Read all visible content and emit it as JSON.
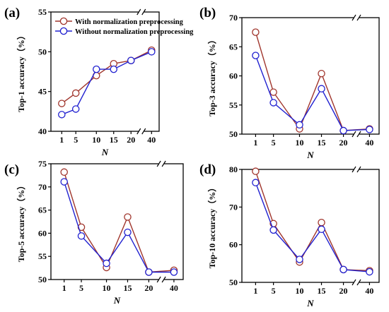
{
  "figure": {
    "legend_placement": "top-left of panel (a)",
    "colors": {
      "with": "#A0352C",
      "without": "#2020D0",
      "axis": "#000000"
    }
  },
  "chart_data": [
    {
      "type": "line",
      "panel_label": "(a)",
      "xlabel": "N",
      "ylabel": "Top-1 accuracy（%）",
      "x": [
        1,
        5,
        10,
        15,
        20,
        40
      ],
      "x_ticks": [
        "1",
        "5",
        "10",
        "15",
        "20",
        "40"
      ],
      "x_axis_break": "between 20 and 40",
      "ylim": [
        40,
        55
      ],
      "y_ticks": [
        "40",
        "45",
        "50",
        "55"
      ],
      "grid": false,
      "legend": [
        "With normalization preprocessing",
        "Without normalization preprocessing"
      ],
      "series": [
        {
          "name": "With normalization preprocessing",
          "values": [
            43.5,
            44.8,
            47.0,
            48.5,
            48.9,
            50.2
          ]
        },
        {
          "name": "Without normalization preprocessing",
          "values": [
            42.1,
            42.8,
            47.8,
            47.8,
            48.9,
            50.0
          ]
        }
      ]
    },
    {
      "type": "line",
      "panel_label": "(b)",
      "xlabel": "N",
      "ylabel": "Top-3 accuracy（%）",
      "x": [
        1,
        5,
        10,
        15,
        20,
        40
      ],
      "x_ticks": [
        "1",
        "5",
        "10",
        "15",
        "20",
        "40"
      ],
      "x_axis_break": "between 20 and 40",
      "ylim": [
        50,
        70
      ],
      "y_ticks": [
        "50",
        "55",
        "60",
        "65",
        "70"
      ],
      "grid": false,
      "series": [
        {
          "name": "With normalization preprocessing",
          "values": [
            67.5,
            57.2,
            50.9,
            60.4,
            50.6,
            50.9
          ]
        },
        {
          "name": "Without normalization preprocessing",
          "values": [
            63.5,
            55.4,
            51.6,
            57.8,
            50.6,
            50.8
          ]
        }
      ]
    },
    {
      "type": "line",
      "panel_label": "(c)",
      "xlabel": "N",
      "ylabel": "Top-5 accuracy（%）",
      "x": [
        1,
        5,
        10,
        15,
        20,
        40
      ],
      "x_ticks": [
        "1",
        "5",
        "10",
        "15",
        "20",
        "40"
      ],
      "x_axis_break": "between 20 and 40",
      "ylim": [
        50,
        75
      ],
      "y_ticks": [
        "50",
        "55",
        "60",
        "65",
        "70",
        "75"
      ],
      "grid": false,
      "series": [
        {
          "name": "With normalization preprocessing",
          "values": [
            73.2,
            61.3,
            52.6,
            63.5,
            51.6,
            52.0
          ]
        },
        {
          "name": "Without normalization preprocessing",
          "values": [
            71.1,
            59.4,
            53.5,
            60.2,
            51.6,
            51.6
          ]
        }
      ]
    },
    {
      "type": "line",
      "panel_label": "(d)",
      "xlabel": "N",
      "ylabel": "Top-10 accuracy（%）",
      "x": [
        1,
        5,
        10,
        15,
        20,
        40
      ],
      "x_ticks": [
        "1",
        "5",
        "10",
        "15",
        "20",
        "40"
      ],
      "x_axis_break": "between 20 and 40",
      "ylim": [
        50,
        80
      ],
      "y_ticks": [
        "50",
        "60",
        "70",
        "80"
      ],
      "grid": false,
      "series": [
        {
          "name": "With normalization preprocessing",
          "values": [
            79.5,
            65.6,
            55.4,
            65.9,
            53.4,
            53.1
          ]
        },
        {
          "name": "Without normalization preprocessing",
          "values": [
            76.5,
            63.9,
            56.1,
            64.1,
            53.4,
            52.8
          ]
        }
      ]
    }
  ]
}
